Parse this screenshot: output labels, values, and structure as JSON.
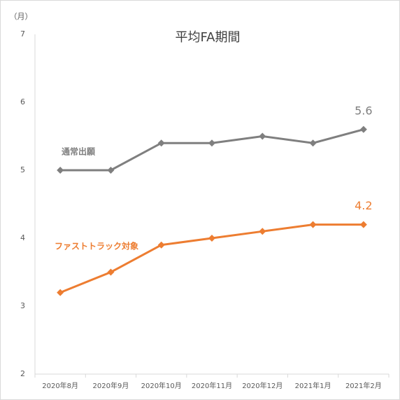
{
  "chart_data": {
    "type": "line",
    "title": "平均FA期間",
    "y_label": "（月）",
    "categories": [
      "2020年8月",
      "2020年9月",
      "2020年10月",
      "2020年11月",
      "2020年12月",
      "2021年1月",
      "2021年2月"
    ],
    "series": [
      {
        "name": "通常出願",
        "color": "#7f7f7f",
        "values": [
          5.0,
          5.0,
          5.4,
          5.4,
          5.5,
          5.4,
          5.6
        ]
      },
      {
        "name": "ファストトラック対象",
        "color": "#ed7d31",
        "values": [
          3.2,
          3.5,
          3.9,
          4.0,
          4.1,
          4.2,
          4.2
        ]
      }
    ],
    "ylim": [
      2,
      7
    ],
    "yticks": [
      2,
      3,
      4,
      5,
      6,
      7
    ],
    "grid": false
  }
}
